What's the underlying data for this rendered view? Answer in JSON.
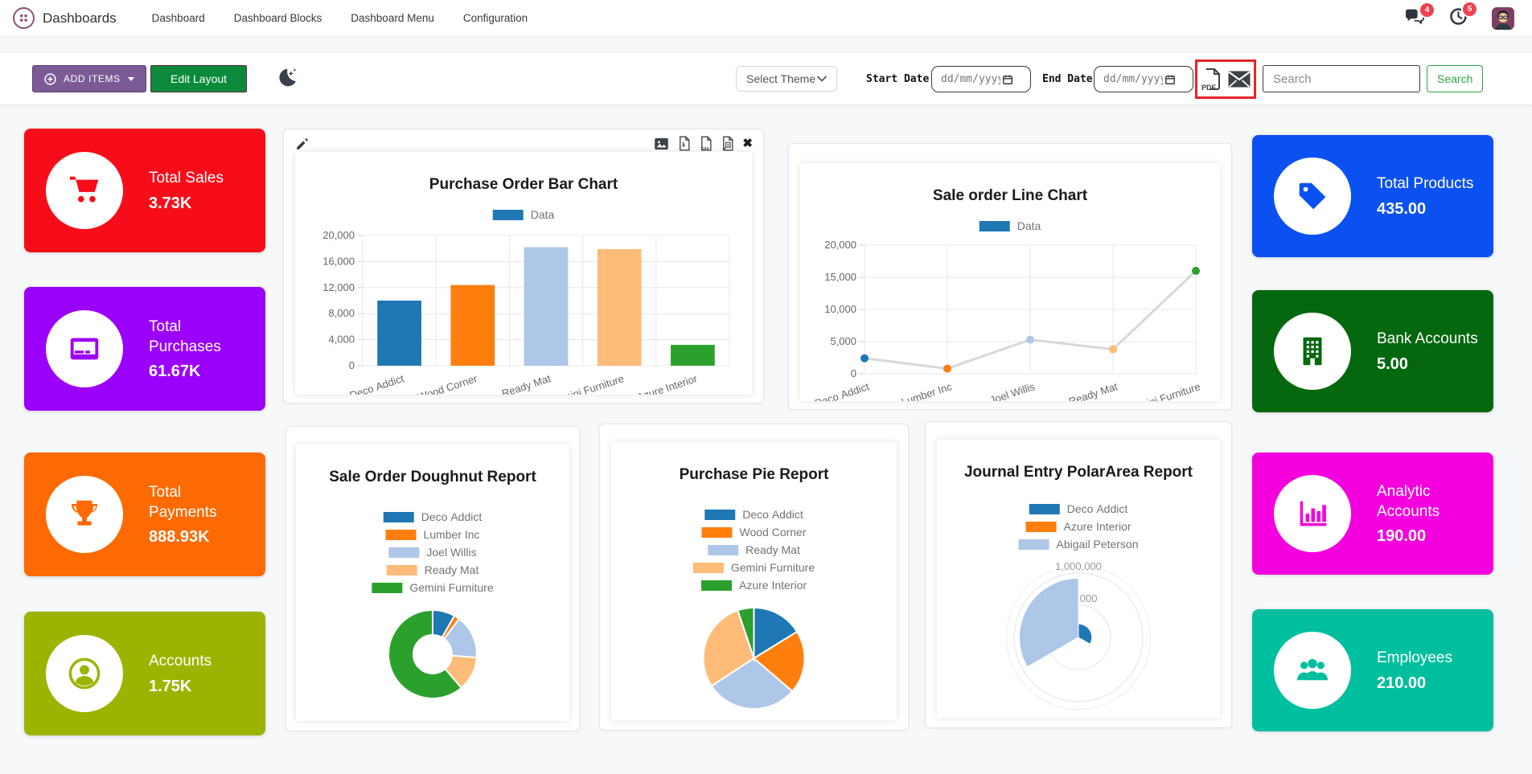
{
  "navbar": {
    "brand": "Dashboards",
    "menu": [
      "Dashboard",
      "Dashboard Blocks",
      "Dashboard Menu",
      "Configuration"
    ],
    "messages_badge": "4",
    "activities_badge": "5"
  },
  "toolbar": {
    "add_items_label": "ADD ITEMS",
    "edit_layout_label": "Edit Layout",
    "select_theme_label": "Select Theme",
    "start_date_label": "Start Date:",
    "end_date_label": "End Date:",
    "date_placeholder": "dd/mm/yyyy",
    "search_placeholder": "Search",
    "search_button_label": "Search",
    "highlight_color": "#e5252c"
  },
  "tiles": {
    "left": [
      {
        "label": "Total Sales",
        "value": "3.73K",
        "color": "#f70d1a",
        "icon": "cart"
      },
      {
        "label": "Total Purchases",
        "value": "61.67K",
        "color": "#9b00fa",
        "icon": "credit-card"
      },
      {
        "label": "Total Payments",
        "value": "888.93K",
        "color": "#fd6a02",
        "icon": "trophy"
      },
      {
        "label": "Accounts",
        "value": "1.75K",
        "color": "#9cb400",
        "icon": "user-circle"
      }
    ],
    "right": [
      {
        "label": "Total Products",
        "value": "435.00",
        "color": "#0b51f2",
        "icon": "tag"
      },
      {
        "label": "Bank Accounts",
        "value": "5.00",
        "color": "#05680f",
        "icon": "building"
      },
      {
        "label": "Analytic Accounts",
        "value": "190.00",
        "color": "#f400de",
        "icon": "bar-chart"
      },
      {
        "label": "Employees",
        "value": "210.00",
        "color": "#00bf9f",
        "icon": "users"
      }
    ]
  },
  "chart_data": [
    {
      "type": "bar",
      "title": "Purchase Order Bar Chart",
      "legend": [
        "Data"
      ],
      "legend_color": "#1f77b4",
      "categories": [
        "Deco Addict",
        "Wood Corner",
        "Ready Mat",
        "Gemini Furniture",
        "Azure Interior"
      ],
      "values": [
        10000,
        12400,
        18200,
        17900,
        3200
      ],
      "colors": [
        "#1f77b4",
        "#ff7f0e",
        "#aec7e8",
        "#ffbb78",
        "#2ca02c"
      ],
      "ylim": [
        0,
        20000
      ],
      "ytick_step": 4000,
      "grid": true
    },
    {
      "type": "line",
      "title": "Sale order Line Chart",
      "legend": [
        "Data"
      ],
      "legend_color": "#1f77b4",
      "categories": [
        "Deco Addict",
        "Lumber Inc",
        "Joel Willis",
        "Ready Mat",
        "Gemini Furniture"
      ],
      "values": [
        2400,
        800,
        5300,
        3800,
        16000
      ],
      "point_colors": [
        "#1f77b4",
        "#ff7f0e",
        "#aec7e8",
        "#ffbb78",
        "#2ca02c"
      ],
      "line_color": "#d8d8d8",
      "ylim": [
        0,
        20000
      ],
      "ytick_step": 5000,
      "grid": true
    },
    {
      "type": "doughnut",
      "title": "Sale Order Doughnut Report",
      "categories": [
        "Deco Addict",
        "Lumber Inc",
        "Joel Willis",
        "Ready Mat",
        "Gemini Furniture"
      ],
      "values": [
        2400,
        600,
        4700,
        3700,
        18000
      ],
      "colors": [
        "#1f77b4",
        "#ff7f0e",
        "#aec7e8",
        "#ffbb78",
        "#2ca02c"
      ],
      "legend_position": "top"
    },
    {
      "type": "pie",
      "title": "Purchase Pie Report",
      "categories": [
        "Deco Addict",
        "Wood Corner",
        "Ready Mat",
        "Gemini Furniture",
        "Azure Interior"
      ],
      "values": [
        10000,
        12400,
        18200,
        17900,
        3200
      ],
      "colors": [
        "#1f77b4",
        "#ff7f0e",
        "#aec7e8",
        "#ffbb78",
        "#2ca02c"
      ],
      "legend_position": "top"
    },
    {
      "type": "polarArea",
      "title": "Journal Entry PolarArea Report",
      "categories": [
        "Deco Addict",
        "Azure Interior",
        "Abigail Peterson"
      ],
      "values": [
        210000,
        20000,
        920000
      ],
      "colors": [
        "#1f77b4",
        "#ff7f0e",
        "#aec7e8"
      ],
      "rmax": 1000000,
      "rticks": [
        500000,
        1000000
      ],
      "legend_position": "top"
    }
  ]
}
